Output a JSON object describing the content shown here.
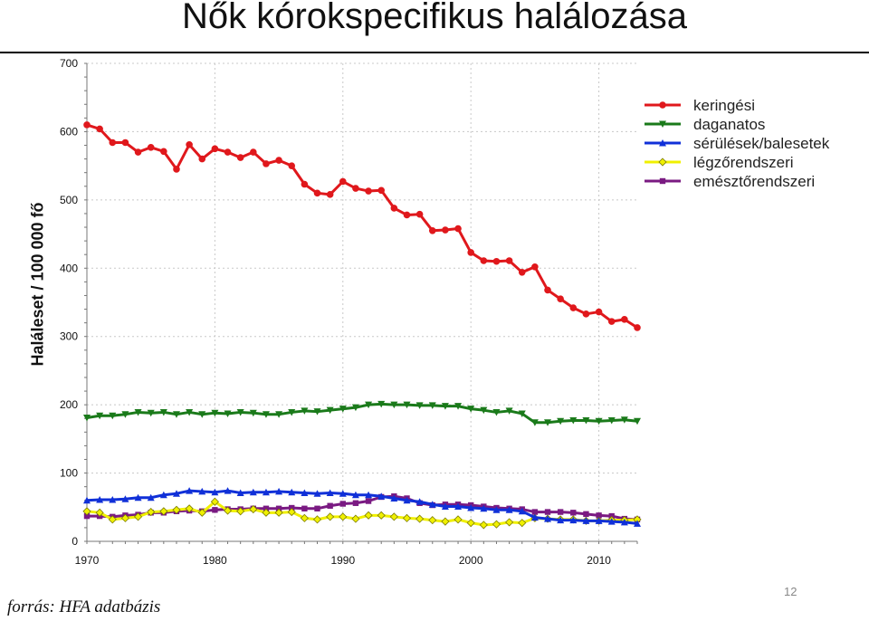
{
  "title": "Nők kórokspecifikus halálozása",
  "source": "forrás: HFA adatbázis",
  "page_number": "12",
  "chart_data": {
    "type": "line",
    "title": "Nők kórokspecifikus halálozása",
    "xlabel": "",
    "ylabel": "Haláleset / 100 000 fő",
    "xlim": [
      1970,
      2013
    ],
    "ylim": [
      0,
      700
    ],
    "x_ticks": [
      1970,
      1980,
      1990,
      2000,
      2010
    ],
    "y_ticks": [
      0,
      100,
      200,
      300,
      400,
      500,
      600,
      700
    ],
    "grid": true,
    "legend_position": "top-right",
    "x": [
      1970,
      1971,
      1972,
      1973,
      1974,
      1975,
      1976,
      1977,
      1978,
      1979,
      1980,
      1981,
      1982,
      1983,
      1984,
      1985,
      1986,
      1987,
      1988,
      1989,
      1990,
      1991,
      1992,
      1993,
      1994,
      1995,
      1996,
      1997,
      1998,
      1999,
      2000,
      2001,
      2002,
      2003,
      2004,
      2005,
      2006,
      2007,
      2008,
      2009,
      2010,
      2011,
      2012,
      2013
    ],
    "series": [
      {
        "name": "keringési",
        "color": "#e0181c",
        "marker": "circle",
        "values": [
          610,
          604,
          584,
          584,
          570,
          577,
          571,
          545,
          581,
          560,
          575,
          570,
          562,
          570,
          553,
          558,
          550,
          523,
          510,
          508,
          527,
          517,
          513,
          514,
          488,
          478,
          479,
          455,
          456,
          458,
          423,
          411,
          410,
          411,
          394,
          402,
          368,
          355,
          342,
          333,
          336,
          322,
          325,
          313
        ]
      },
      {
        "name": "daganatos",
        "color": "#1a7a1a",
        "marker": "triangle-down",
        "values": [
          181,
          184,
          184,
          186,
          189,
          188,
          189,
          186,
          189,
          186,
          188,
          187,
          189,
          188,
          186,
          186,
          189,
          191,
          190,
          192,
          194,
          196,
          200,
          201,
          200,
          200,
          199,
          199,
          198,
          198,
          194,
          192,
          189,
          191,
          187,
          174,
          174,
          176,
          177,
          177,
          176,
          177,
          178,
          176
        ]
      },
      {
        "name": "sérülések/balesetek",
        "color": "#1030d8",
        "marker": "triangle-up",
        "values": [
          60,
          61,
          61,
          62,
          64,
          64,
          68,
          70,
          74,
          73,
          72,
          74,
          71,
          72,
          72,
          73,
          72,
          71,
          70,
          71,
          70,
          68,
          68,
          66,
          63,
          60,
          58,
          54,
          51,
          51,
          49,
          48,
          46,
          46,
          44,
          35,
          33,
          31,
          31,
          30,
          30,
          29,
          28,
          26
        ]
      },
      {
        "name": "légzőrendszeri",
        "color": "#f0f000",
        "marker": "diamond",
        "values": [
          44,
          42,
          32,
          34,
          36,
          43,
          44,
          46,
          48,
          42,
          58,
          45,
          44,
          47,
          42,
          42,
          43,
          34,
          32,
          36,
          36,
          33,
          38,
          38,
          36,
          34,
          33,
          31,
          29,
          32,
          27,
          24,
          25,
          28,
          27,
          34,
          33,
          32,
          32,
          30,
          30,
          31,
          31,
          32
        ]
      },
      {
        "name": "emésztőrendszeri",
        "color": "#7a1a82",
        "marker": "square",
        "values": [
          37,
          37,
          36,
          38,
          39,
          42,
          42,
          44,
          45,
          44,
          46,
          47,
          47,
          48,
          48,
          48,
          49,
          48,
          48,
          52,
          55,
          56,
          59,
          65,
          66,
          63,
          56,
          53,
          54,
          54,
          53,
          51,
          49,
          48,
          47,
          43,
          43,
          43,
          42,
          40,
          38,
          37,
          33,
          32
        ]
      }
    ]
  }
}
